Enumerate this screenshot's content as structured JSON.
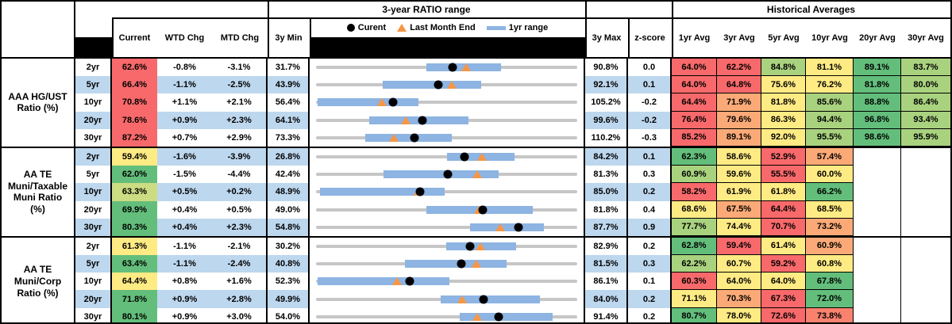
{
  "titles": {
    "range": "3-year RATIO range",
    "historical": "Historical Averages"
  },
  "headers": {
    "current": "Current",
    "wtd": "WTD Chg",
    "mtd": "MTD Chg",
    "min3y": "3y Min",
    "max3y": "3y Max",
    "zscore": "z-score",
    "averages": [
      "1yr Avg",
      "3yr Avg",
      "5yr Avg",
      "10yr Avg",
      "20yr Avg",
      "30yr Avg"
    ]
  },
  "legend": {
    "current": "Curent",
    "last_month_end": "Last Month End",
    "range_1yr": "1yr range"
  },
  "colors": {
    "stripe": "#BDD7EE",
    "bar_1yr": "#8DB4E2",
    "track": "#C6C6C6",
    "dot": "#000000",
    "triangle": "#F79646",
    "red": "#F8696B",
    "orange": "#FBAA77",
    "yellow": "#FFEB84",
    "light_green": "#A9D27F",
    "green": "#63BE7B"
  },
  "chart_data": {
    "type": "table",
    "groups": [
      {
        "label": "AAA HG/UST\nRatio (%)",
        "rows": [
          {
            "tenor": "2yr",
            "current": "62.6%",
            "current_color": "#F8696B",
            "wtd": "-0.8%",
            "mtd": "-3.1%",
            "min": "31.7%",
            "max": "90.8%",
            "zscore": "0.0",
            "range_chart": {
              "min": 31.7,
              "max": 90.8,
              "current": 62.6,
              "last_month_end": 65.7,
              "yr_low": 56.6,
              "yr_high": 73.5
            },
            "avgs": [
              {
                "v": "64.0%",
                "c": "#F8696B"
              },
              {
                "v": "62.2%",
                "c": "#F8696B"
              },
              {
                "v": "84.8%",
                "c": "#A9D27F"
              },
              {
                "v": "81.1%",
                "c": "#FFEB84"
              },
              {
                "v": "89.1%",
                "c": "#63BE7B"
              },
              {
                "v": "83.7%",
                "c": "#A9D27F"
              }
            ]
          },
          {
            "tenor": "5yr",
            "current": "66.4%",
            "current_color": "#F8696B",
            "wtd": "-1.1%",
            "mtd": "-2.5%",
            "min": "43.9%",
            "max": "92.1%",
            "zscore": "0.1",
            "range_chart": {
              "min": 43.9,
              "max": 92.1,
              "current": 66.4,
              "last_month_end": 68.9,
              "yr_low": 56.2,
              "yr_high": 74.4
            },
            "avgs": [
              {
                "v": "64.0%",
                "c": "#F8696B"
              },
              {
                "v": "64.8%",
                "c": "#F8696B"
              },
              {
                "v": "75.6%",
                "c": "#FFEB84"
              },
              {
                "v": "76.2%",
                "c": "#FFEB84"
              },
              {
                "v": "81.8%",
                "c": "#63BE7B"
              },
              {
                "v": "80.0%",
                "c": "#A9D27F"
              }
            ]
          },
          {
            "tenor": "10yr",
            "current": "70.8%",
            "current_color": "#F8696B",
            "wtd": "+1.1%",
            "mtd": "+2.1%",
            "min": "56.4%",
            "max": "105.2%",
            "zscore": "-0.2",
            "range_chart": {
              "min": 56.4,
              "max": 105.2,
              "current": 70.8,
              "last_month_end": 68.7,
              "yr_low": 56.7,
              "yr_high": 75.6
            },
            "avgs": [
              {
                "v": "64.4%",
                "c": "#F8696B"
              },
              {
                "v": "71.9%",
                "c": "#FBAA77"
              },
              {
                "v": "81.8%",
                "c": "#FFEB84"
              },
              {
                "v": "85.6%",
                "c": "#A9D27F"
              },
              {
                "v": "88.8%",
                "c": "#63BE7B"
              },
              {
                "v": "86.4%",
                "c": "#A9D27F"
              }
            ]
          },
          {
            "tenor": "20yr",
            "current": "78.6%",
            "current_color": "#F8696B",
            "wtd": "+0.9%",
            "mtd": "+2.3%",
            "min": "64.1%",
            "max": "99.6%",
            "zscore": "-0.2",
            "range_chart": {
              "min": 64.1,
              "max": 99.6,
              "current": 78.6,
              "last_month_end": 76.3,
              "yr_low": 71.3,
              "yr_high": 84.8
            },
            "avgs": [
              {
                "v": "76.4%",
                "c": "#F8696B"
              },
              {
                "v": "79.6%",
                "c": "#FBAA77"
              },
              {
                "v": "86.3%",
                "c": "#FFEB84"
              },
              {
                "v": "94.4%",
                "c": "#A9D27F"
              },
              {
                "v": "96.8%",
                "c": "#63BE7B"
              },
              {
                "v": "93.4%",
                "c": "#A9D27F"
              }
            ]
          },
          {
            "tenor": "30yr",
            "current": "87.2%",
            "current_color": "#F8696B",
            "wtd": "+0.7%",
            "mtd": "+2.9%",
            "min": "73.3%",
            "max": "110.2%",
            "zscore": "-0.3",
            "range_chart": {
              "min": 73.3,
              "max": 110.2,
              "current": 87.2,
              "last_month_end": 84.3,
              "yr_low": 80.2,
              "yr_high": 92.5
            },
            "avgs": [
              {
                "v": "85.2%",
                "c": "#F8696B"
              },
              {
                "v": "89.1%",
                "c": "#FBAA77"
              },
              {
                "v": "92.0%",
                "c": "#FFEB84"
              },
              {
                "v": "95.5%",
                "c": "#A9D27F"
              },
              {
                "v": "98.6%",
                "c": "#63BE7B"
              },
              {
                "v": "95.9%",
                "c": "#A9D27F"
              }
            ]
          }
        ]
      },
      {
        "label": "AA TE\nMuni/Taxable\nMuni Ratio\n(%)",
        "rows": [
          {
            "tenor": "2yr",
            "current": "59.4%",
            "current_color": "#FFEB84",
            "wtd": "-1.6%",
            "mtd": "-3.9%",
            "min": "26.8%",
            "max": "84.2%",
            "zscore": "0.1",
            "range_chart": {
              "min": 26.8,
              "max": 84.2,
              "current": 59.4,
              "last_month_end": 63.3,
              "yr_low": 55.6,
              "yr_high": 70.5
            },
            "avgs": [
              {
                "v": "62.3%",
                "c": "#63BE7B"
              },
              {
                "v": "58.6%",
                "c": "#FFEB84"
              },
              {
                "v": "52.9%",
                "c": "#F8696B"
              },
              {
                "v": "57.4%",
                "c": "#FBAA77"
              },
              null,
              null
            ]
          },
          {
            "tenor": "5yr",
            "current": "62.0%",
            "current_color": "#63BE7B",
            "wtd": "-1.5%",
            "mtd": "-4.4%",
            "min": "42.4%",
            "max": "81.3%",
            "zscore": "0.3",
            "range_chart": {
              "min": 42.4,
              "max": 81.3,
              "current": 62.0,
              "last_month_end": 66.4,
              "yr_low": 52.4,
              "yr_high": 69.6
            },
            "avgs": [
              {
                "v": "60.9%",
                "c": "#A9D27F"
              },
              {
                "v": "59.6%",
                "c": "#FFEB84"
              },
              {
                "v": "55.5%",
                "c": "#F8696B"
              },
              {
                "v": "60.0%",
                "c": "#FFEB84"
              },
              null,
              null
            ]
          },
          {
            "tenor": "10yr",
            "current": "63.3%",
            "current_color": "#CCDC82",
            "wtd": "+0.5%",
            "mtd": "+0.2%",
            "min": "48.9%",
            "max": "85.0%",
            "zscore": "0.2",
            "range_chart": {
              "min": 48.9,
              "max": 85.0,
              "current": 63.3,
              "last_month_end": 63.1,
              "yr_low": 49.5,
              "yr_high": 66.7
            },
            "avgs": [
              {
                "v": "58.2%",
                "c": "#F8696B"
              },
              {
                "v": "61.9%",
                "c": "#FFEB84"
              },
              {
                "v": "61.8%",
                "c": "#FFEB84"
              },
              {
                "v": "66.2%",
                "c": "#63BE7B"
              },
              null,
              null
            ]
          },
          {
            "tenor": "20yr",
            "current": "69.9%",
            "current_color": "#63BE7B",
            "wtd": "+0.4%",
            "mtd": "+0.5%",
            "min": "49.0%",
            "max": "81.8%",
            "zscore": "0.4",
            "range_chart": {
              "min": 49.0,
              "max": 81.8,
              "current": 69.9,
              "last_month_end": 69.4,
              "yr_low": 62.9,
              "yr_high": 76.2
            },
            "avgs": [
              {
                "v": "68.6%",
                "c": "#FFEB84"
              },
              {
                "v": "67.5%",
                "c": "#FBAA77"
              },
              {
                "v": "64.4%",
                "c": "#F8696B"
              },
              {
                "v": "68.5%",
                "c": "#FFEB84"
              },
              null,
              null
            ]
          },
          {
            "tenor": "30yr",
            "current": "80.3%",
            "current_color": "#63BE7B",
            "wtd": "+0.4%",
            "mtd": "+2.3%",
            "min": "54.8%",
            "max": "87.7%",
            "zscore": "0.9",
            "range_chart": {
              "min": 54.8,
              "max": 87.7,
              "current": 80.3,
              "last_month_end": 78.0,
              "yr_low": 74.2,
              "yr_high": 83.5
            },
            "avgs": [
              {
                "v": "77.7%",
                "c": "#A9D27F"
              },
              {
                "v": "74.4%",
                "c": "#FFEB84"
              },
              {
                "v": "70.7%",
                "c": "#F8696B"
              },
              {
                "v": "73.2%",
                "c": "#FBAA77"
              },
              null,
              null
            ]
          }
        ]
      },
      {
        "label": "AA TE\nMuni/Corp\nRatio (%)",
        "rows": [
          {
            "tenor": "2yr",
            "current": "61.3%",
            "current_color": "#FFEB84",
            "wtd": "-1.1%",
            "mtd": "-2.1%",
            "min": "30.2%",
            "max": "82.9%",
            "zscore": "0.2",
            "range_chart": {
              "min": 30.2,
              "max": 82.9,
              "current": 61.3,
              "last_month_end": 63.4,
              "yr_low": 56.5,
              "yr_high": 70.6
            },
            "avgs": [
              {
                "v": "62.8%",
                "c": "#63BE7B"
              },
              {
                "v": "59.4%",
                "c": "#F8696B"
              },
              {
                "v": "61.4%",
                "c": "#FFEB84"
              },
              {
                "v": "60.9%",
                "c": "#FBAA77"
              },
              null,
              null
            ]
          },
          {
            "tenor": "5yr",
            "current": "63.4%",
            "current_color": "#63BE7B",
            "wtd": "-1.1%",
            "mtd": "-2.4%",
            "min": "40.8%",
            "max": "81.5%",
            "zscore": "0.3",
            "range_chart": {
              "min": 40.8,
              "max": 81.5,
              "current": 63.4,
              "last_month_end": 65.8,
              "yr_low": 54.7,
              "yr_high": 70.5
            },
            "avgs": [
              {
                "v": "62.2%",
                "c": "#A9D27F"
              },
              {
                "v": "60.7%",
                "c": "#FFEB84"
              },
              {
                "v": "59.2%",
                "c": "#F8696B"
              },
              {
                "v": "60.8%",
                "c": "#FFEB84"
              },
              null,
              null
            ]
          },
          {
            "tenor": "10yr",
            "current": "64.4%",
            "current_color": "#FFEB84",
            "wtd": "+0.8%",
            "mtd": "+1.6%",
            "min": "52.3%",
            "max": "86.1%",
            "zscore": "0.1",
            "range_chart": {
              "min": 52.3,
              "max": 86.1,
              "current": 64.4,
              "last_month_end": 62.8,
              "yr_low": 52.5,
              "yr_high": 69.6
            },
            "avgs": [
              {
                "v": "60.3%",
                "c": "#F8696B"
              },
              {
                "v": "64.0%",
                "c": "#FFEB84"
              },
              {
                "v": "64.0%",
                "c": "#FFEB84"
              },
              {
                "v": "67.8%",
                "c": "#63BE7B"
              },
              null,
              null
            ]
          },
          {
            "tenor": "20yr",
            "current": "71.8%",
            "current_color": "#63BE7B",
            "wtd": "+0.9%",
            "mtd": "+2.8%",
            "min": "49.9%",
            "max": "84.0%",
            "zscore": "0.2",
            "range_chart": {
              "min": 49.9,
              "max": 84.0,
              "current": 71.8,
              "last_month_end": 69.0,
              "yr_low": 66.2,
              "yr_high": 79.1
            },
            "avgs": [
              {
                "v": "71.1%",
                "c": "#FFEB84"
              },
              {
                "v": "70.3%",
                "c": "#FBAA77"
              },
              {
                "v": "67.3%",
                "c": "#F8696B"
              },
              {
                "v": "72.0%",
                "c": "#63BE7B"
              },
              null,
              null
            ]
          },
          {
            "tenor": "30yr",
            "current": "80.1%",
            "current_color": "#63BE7B",
            "wtd": "+0.9%",
            "mtd": "+3.0%",
            "min": "54.0%",
            "max": "91.4%",
            "zscore": "0.2",
            "range_chart": {
              "min": 54.0,
              "max": 91.4,
              "current": 80.1,
              "last_month_end": 77.1,
              "yr_low": 74.6,
              "yr_high": 87.9
            },
            "avgs": [
              {
                "v": "80.7%",
                "c": "#63BE7B"
              },
              {
                "v": "78.0%",
                "c": "#FFEB84"
              },
              {
                "v": "72.6%",
                "c": "#F8696B"
              },
              {
                "v": "73.8%",
                "c": "#F9826F"
              },
              null,
              null
            ]
          }
        ]
      }
    ]
  }
}
